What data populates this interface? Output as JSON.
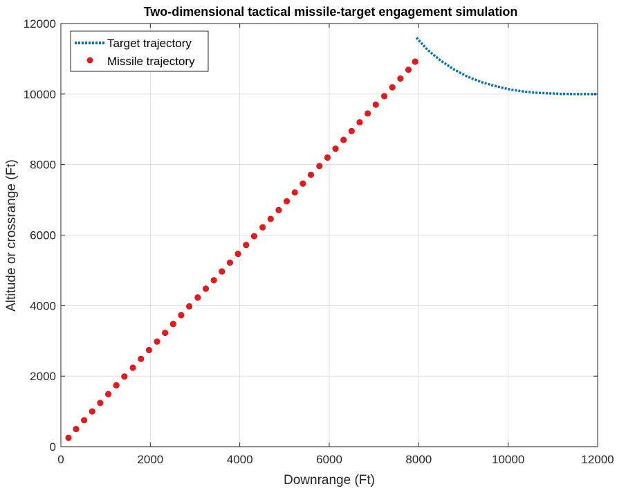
{
  "chart_data": {
    "type": "line",
    "title": "Two-dimensional tactical missile-target engagement simulation",
    "xlabel": "Downrange (Ft)",
    "ylabel": "Altitude or crossrange (Ft)",
    "xlim": [
      0,
      12000
    ],
    "ylim": [
      0,
      12000
    ],
    "xticks": [
      0,
      2000,
      4000,
      6000,
      8000,
      10000,
      12000
    ],
    "yticks": [
      0,
      2000,
      4000,
      6000,
      8000,
      10000,
      12000
    ],
    "grid": true,
    "legend_position": "top-left",
    "series": [
      {
        "name": "Target trajectory",
        "style": "dotted-line",
        "color": "#0072BD",
        "x": [
          7950,
          8200,
          8500,
          8800,
          9100,
          9400,
          9700,
          10000,
          10300,
          10600,
          10900,
          11200,
          11500,
          11800,
          12000
        ],
        "y": [
          11600,
          11250,
          10940,
          10690,
          10490,
          10340,
          10230,
          10140,
          10080,
          10040,
          10020,
          10005,
          10000,
          10000,
          10000
        ]
      },
      {
        "name": "Missile trajectory",
        "style": "markers",
        "color": "#E31A1C",
        "x": [
          170,
          340,
          520,
          700,
          880,
          1060,
          1240,
          1420,
          1610,
          1790,
          1970,
          2150,
          2330,
          2510,
          2690,
          2870,
          3060,
          3240,
          3420,
          3600,
          3780,
          3960,
          4140,
          4320,
          4510,
          4690,
          4870,
          5050,
          5230,
          5410,
          5590,
          5780,
          5960,
          6140,
          6320,
          6500,
          6680,
          6860,
          7040,
          7230,
          7410,
          7590,
          7770,
          7920
        ],
        "y": [
          250,
          500,
          750,
          1000,
          1240,
          1490,
          1740,
          1990,
          2240,
          2490,
          2740,
          2980,
          3230,
          3480,
          3730,
          3980,
          4230,
          4480,
          4720,
          4970,
          5220,
          5470,
          5720,
          5970,
          6220,
          6460,
          6710,
          6960,
          7210,
          7460,
          7710,
          7960,
          8200,
          8450,
          8700,
          8950,
          9200,
          9450,
          9700,
          9940,
          10190,
          10440,
          10690,
          10920
        ]
      }
    ]
  }
}
